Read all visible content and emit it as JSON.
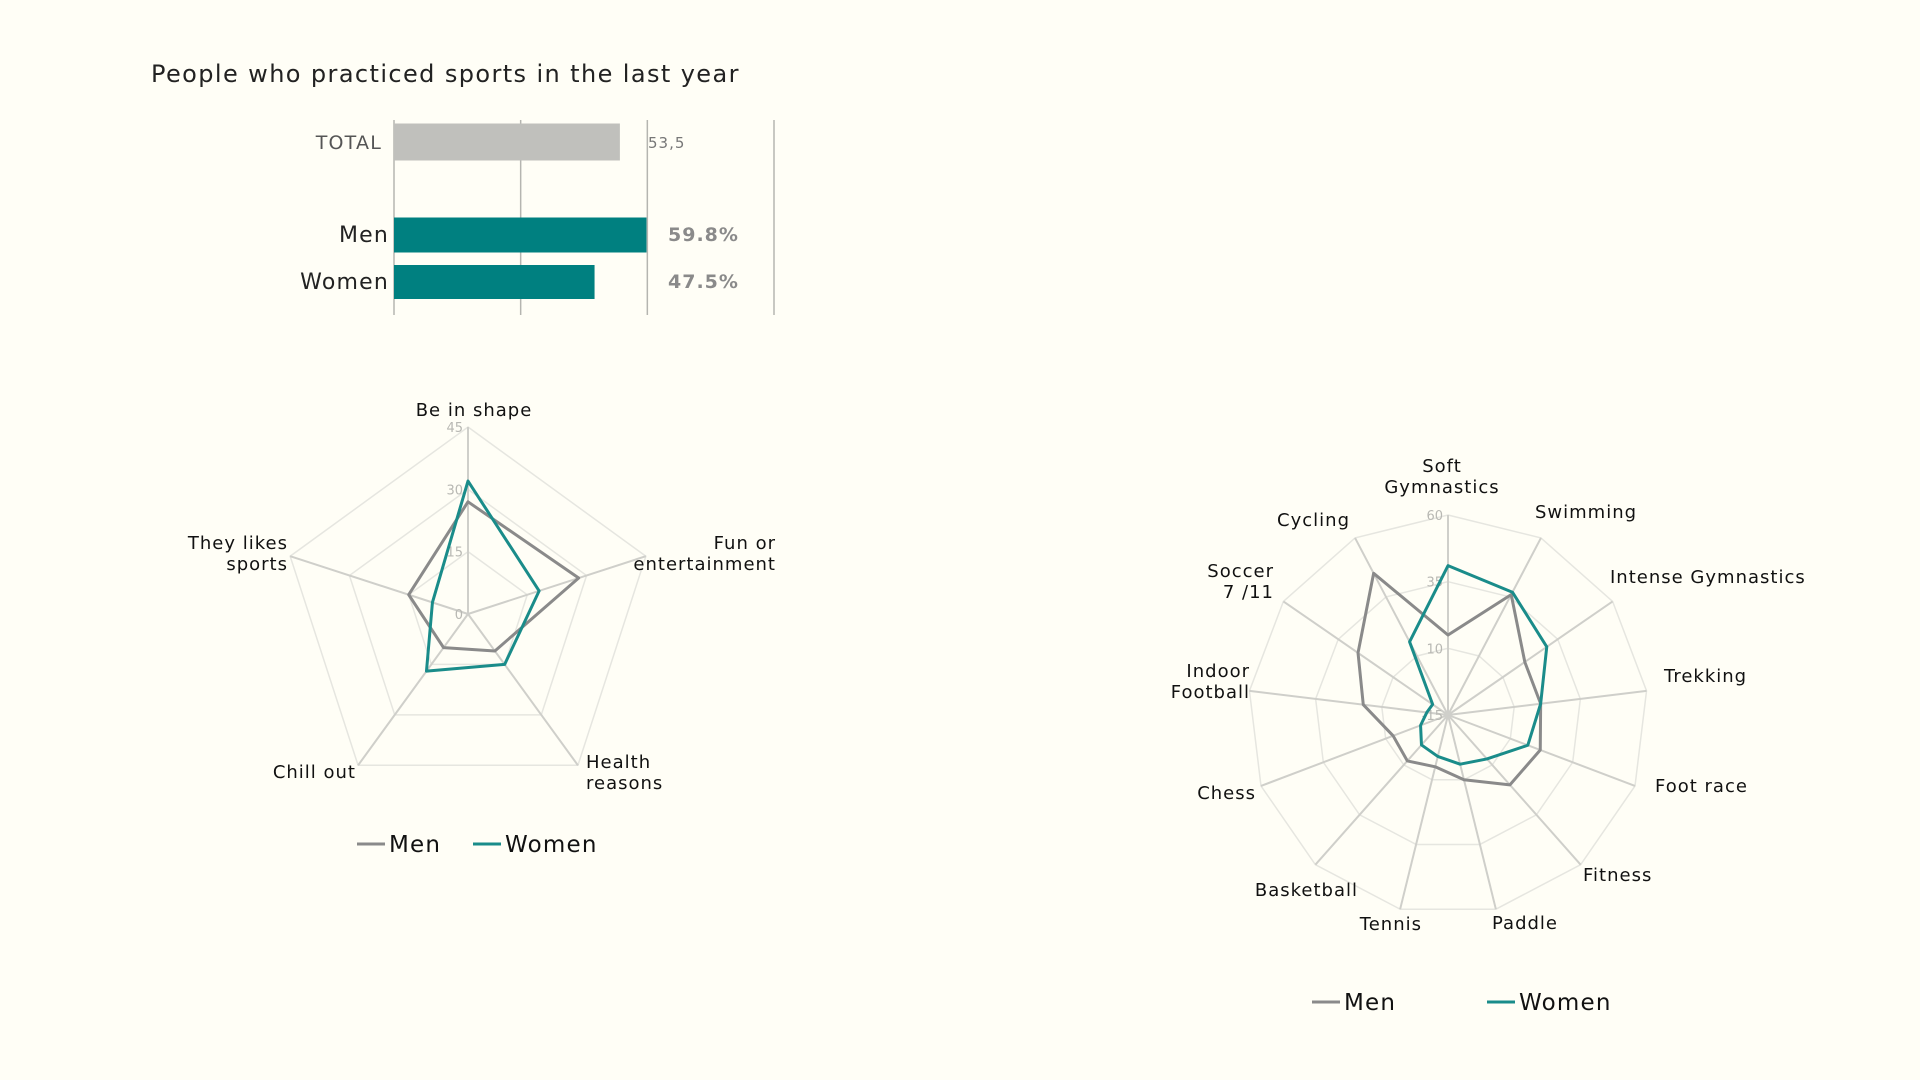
{
  "title": "People who practiced sports in the last year",
  "colors": {
    "men": "#8a8a8a",
    "women": "#1a8c8a",
    "bar_total": "#c0c0bc",
    "bar_group": "#008080"
  },
  "chart_data": [
    {
      "type": "bar",
      "orientation": "horizontal",
      "categories": [
        "TOTAL",
        "Men",
        "Women"
      ],
      "values": [
        53.5,
        59.8,
        47.5
      ],
      "value_labels": [
        "53,5",
        "59.8%",
        "47.5%"
      ],
      "xlim": [
        0,
        90
      ],
      "grid": true
    },
    {
      "type": "radar",
      "axes": [
        "Be in shape",
        "Fun or\nentertainment",
        "Health\nreasons",
        "Chill out",
        "They likes\nsports"
      ],
      "ticks": [
        "0",
        "15",
        "30",
        "45"
      ],
      "rlim": [
        0,
        45
      ],
      "series": [
        {
          "name": "Men",
          "values": [
            27,
            28,
            11,
            10,
            15
          ]
        },
        {
          "name": "Women",
          "values": [
            32,
            18,
            15,
            17,
            9
          ]
        }
      ],
      "legend": [
        "Men",
        "Women"
      ],
      "legend_position": "bottom"
    },
    {
      "type": "radar",
      "axes": [
        "Soft\nGymnastics",
        "Swimming",
        "Intense Gymnastics",
        "Trekking",
        "Foot race",
        "Fitness",
        "Paddle",
        "Tennis",
        "Basketball",
        "Chess",
        "Indoor\nFootball",
        "Soccer\n7 /11",
        "Cycling"
      ],
      "ticks": [
        "-15",
        "10",
        "35",
        "60"
      ],
      "rlim": [
        -15,
        60
      ],
      "series": [
        {
          "name": "Men",
          "values": [
            15,
            36,
            20,
            20,
            22,
            20,
            10,
            5,
            8,
            7,
            17,
            26,
            45
          ]
        },
        {
          "name": "Women",
          "values": [
            41,
            37,
            30,
            20,
            17,
            7,
            4,
            1,
            0,
            -4,
            -7,
            -8,
            16
          ]
        }
      ],
      "legend": [
        "Men",
        "Women"
      ],
      "legend_position": "bottom"
    }
  ]
}
